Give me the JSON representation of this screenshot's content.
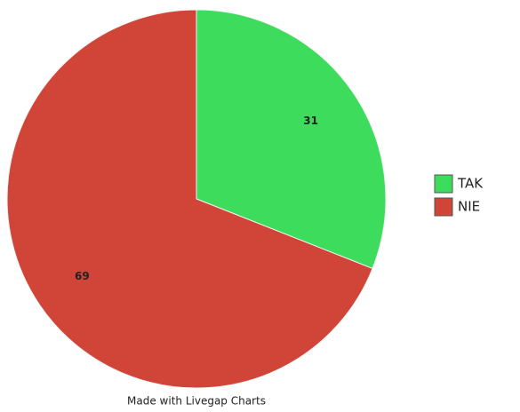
{
  "chart_data": {
    "type": "pie",
    "categories": [
      "TAK",
      "NIE"
    ],
    "values": [
      31,
      69
    ],
    "colors": [
      "#3ddc5c",
      "#d04538"
    ],
    "legend": "right",
    "footer": "Made with Livegap Charts"
  }
}
